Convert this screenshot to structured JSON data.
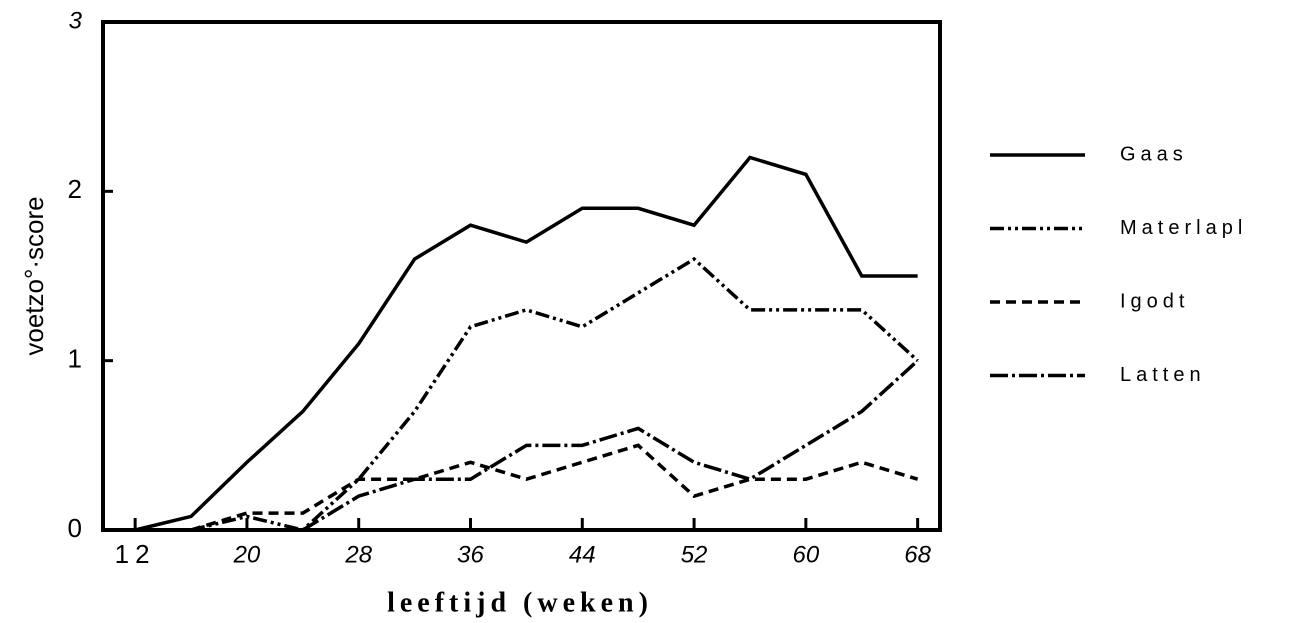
{
  "chart_data": {
    "type": "line",
    "x_label": "leeftijd (weken)",
    "y_label": "voetzo°·score",
    "x": [
      12,
      16,
      20,
      24,
      28,
      32,
      36,
      40,
      44,
      48,
      52,
      56,
      60,
      64,
      68
    ],
    "series": [
      {
        "name": "Gaas",
        "color": "#000000",
        "dash": "none",
        "values": [
          0,
          0.08,
          0.4,
          0.7,
          1.1,
          1.6,
          1.8,
          1.7,
          1.9,
          1.9,
          1.8,
          2.2,
          2.1,
          1.5,
          1.5
        ]
      },
      {
        "name": "Materlapl",
        "color": "#000000",
        "dash": "14 4 3 4 3 4",
        "values": [
          null,
          0,
          0.08,
          0,
          0.3,
          0.7,
          1.2,
          1.3,
          1.2,
          1.4,
          1.6,
          1.3,
          1.3,
          1.3,
          1.0
        ]
      },
      {
        "name": "Igodt",
        "color": "#000000",
        "dash": "10 6",
        "values": [
          null,
          0,
          0.1,
          0.1,
          0.3,
          0.3,
          0.4,
          0.3,
          0.4,
          0.5,
          0.2,
          0.3,
          0.3,
          0.4,
          0.3
        ]
      },
      {
        "name": "Latten",
        "color": "#000000",
        "dash": "18 4 3 4",
        "values": [
          null,
          null,
          null,
          0,
          0.2,
          0.3,
          0.3,
          0.5,
          0.5,
          0.6,
          0.4,
          0.3,
          0.5,
          0.7,
          1.0
        ]
      }
    ],
    "xlim": [
      9.7,
      69.6
    ],
    "xticks": [
      12,
      20,
      28,
      36,
      44,
      52,
      60,
      68
    ],
    "ylim": [
      0,
      3
    ],
    "yticks": [
      0,
      1,
      2,
      3
    ],
    "grid": false,
    "legend": "right"
  }
}
